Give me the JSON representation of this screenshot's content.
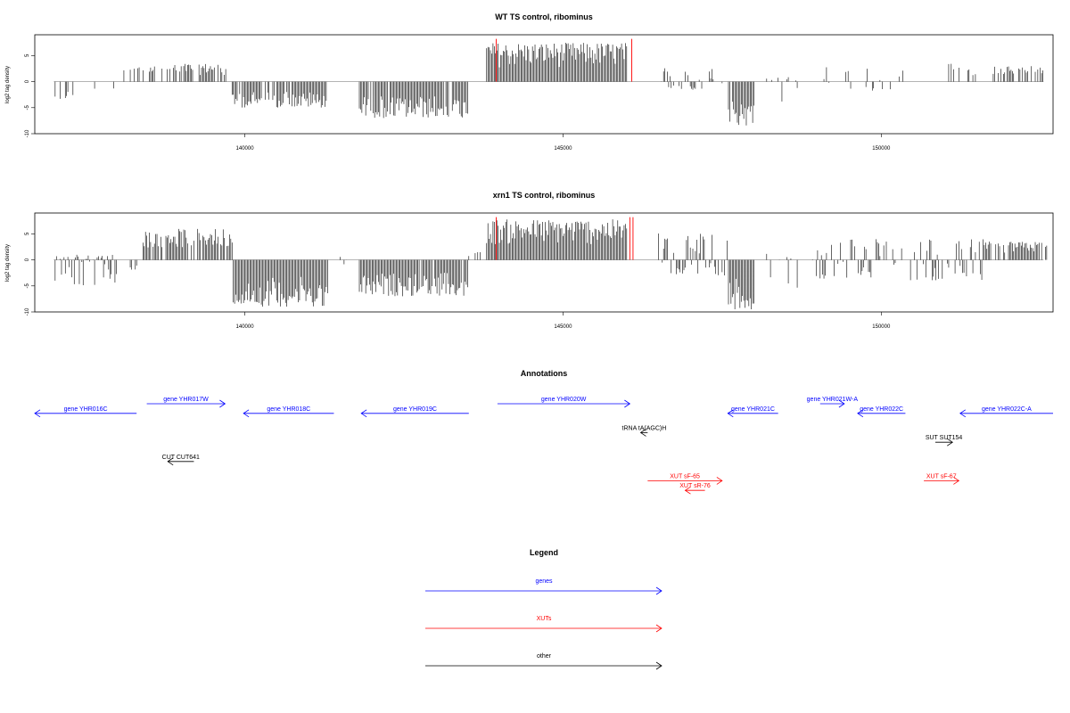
{
  "colors": {
    "genes": "#0000ff",
    "xuts": "#ff0000",
    "other": "#000000",
    "bars": "#000000",
    "peak": "#ff0000",
    "axis": "#000000"
  },
  "chart_data": [
    {
      "type": "bar",
      "title": "WT TS control, ribominus",
      "ylabel": "log2 tag density",
      "xlabel": "",
      "xlim": [
        136700,
        152700
      ],
      "ylim": [
        -10,
        9
      ],
      "xticks": [
        140000,
        145000,
        150000
      ],
      "yticks": [
        -10,
        -5,
        0,
        5
      ],
      "xtick_labels": [
        "140000",
        "145000",
        "150000"
      ],
      "ytick_labels": [
        "-10",
        "-5",
        "0",
        "5"
      ],
      "bin_size": 20,
      "segments": [
        {
          "start": 137000,
          "end": 137300,
          "min": -3.5,
          "max": 0,
          "density": 0.5
        },
        {
          "start": 137600,
          "end": 137700,
          "min": -2.0,
          "max": 0,
          "density": 0.3
        },
        {
          "start": 137900,
          "end": 137950,
          "min": -2.5,
          "max": 0,
          "density": 0.3
        },
        {
          "start": 138100,
          "end": 138900,
          "min": 0,
          "max": 3.2,
          "density": 0.35
        },
        {
          "start": 138900,
          "end": 139700,
          "min": 0,
          "max": 3.5,
          "density": 0.7
        },
        {
          "start": 139800,
          "end": 141300,
          "min": -5.0,
          "max": 0,
          "density": 0.85
        },
        {
          "start": 141800,
          "end": 143500,
          "min": -7.0,
          "max": 0,
          "density": 0.95
        },
        {
          "start": 143800,
          "end": 146000,
          "min": 0,
          "max": 7.5,
          "density": 1.0
        },
        {
          "start": 146200,
          "end": 146350,
          "min": -2.5,
          "max": 3.0,
          "density": 0.35
        },
        {
          "start": 146500,
          "end": 147500,
          "min": -2.0,
          "max": 3.0,
          "density": 0.3
        },
        {
          "start": 147600,
          "end": 148000,
          "min": -8.5,
          "max": 0,
          "density": 0.9
        },
        {
          "start": 148200,
          "end": 148700,
          "min": -5.5,
          "max": 1.0,
          "density": 0.35
        },
        {
          "start": 149000,
          "end": 150600,
          "min": -2.0,
          "max": 3.0,
          "density": 0.22
        },
        {
          "start": 151000,
          "end": 151500,
          "min": 0,
          "max": 3.5,
          "density": 0.35
        },
        {
          "start": 151700,
          "end": 152550,
          "min": 0,
          "max": 3.0,
          "density": 0.55
        }
      ],
      "peaks": [
        {
          "x": 143950,
          "y": 8.2
        },
        {
          "x": 146080,
          "y": 8.2
        }
      ]
    },
    {
      "type": "bar",
      "title": "xrn1 TS control, ribominus",
      "ylabel": "log2 tag density",
      "xlabel": "",
      "xlim": [
        136700,
        152700
      ],
      "ylim": [
        -10,
        9
      ],
      "xticks": [
        140000,
        145000,
        150000
      ],
      "yticks": [
        -10,
        -5,
        0,
        5
      ],
      "xtick_labels": [
        "140000",
        "145000",
        "150000"
      ],
      "ytick_labels": [
        "-10",
        "-5",
        "0",
        "5"
      ],
      "bin_size": 20,
      "segments": [
        {
          "start": 137000,
          "end": 138000,
          "min": -5.0,
          "max": 1.0,
          "density": 0.7
        },
        {
          "start": 138100,
          "end": 138400,
          "min": -2.0,
          "max": 0,
          "density": 0.3
        },
        {
          "start": 138400,
          "end": 139800,
          "min": 0,
          "max": 6.0,
          "density": 0.85
        },
        {
          "start": 139800,
          "end": 141300,
          "min": -9.0,
          "max": 0,
          "density": 0.95
        },
        {
          "start": 141500,
          "end": 141700,
          "min": -1.5,
          "max": 2.0,
          "density": 0.3
        },
        {
          "start": 141800,
          "end": 143500,
          "min": -7.0,
          "max": 0,
          "density": 0.95
        },
        {
          "start": 143500,
          "end": 143700,
          "min": 0,
          "max": 1.5,
          "density": 0.3
        },
        {
          "start": 143800,
          "end": 146000,
          "min": 0,
          "max": 7.8,
          "density": 1.0
        },
        {
          "start": 146500,
          "end": 147600,
          "min": -3.0,
          "max": 5.5,
          "density": 0.7
        },
        {
          "start": 147600,
          "end": 148000,
          "min": -9.5,
          "max": 0,
          "density": 0.95
        },
        {
          "start": 148200,
          "end": 148700,
          "min": -5.5,
          "max": 1.5,
          "density": 0.35
        },
        {
          "start": 148900,
          "end": 151600,
          "min": -4.0,
          "max": 4.0,
          "density": 0.5
        },
        {
          "start": 151600,
          "end": 152600,
          "min": 0,
          "max": 3.5,
          "density": 0.8
        }
      ],
      "peaks": [
        {
          "x": 143950,
          "y": 8.2
        },
        {
          "x": 146050,
          "y": 8.2
        },
        {
          "x": 146100,
          "y": 8.2
        }
      ]
    }
  ],
  "annotations": {
    "title": "Annotations",
    "xlim": [
      136700,
      152700
    ],
    "features": [
      {
        "label": "gene YHR016C",
        "type": "genes",
        "start": 136700,
        "end": 138300,
        "strand": "-",
        "row": 1
      },
      {
        "label": "gene YHR017W",
        "type": "genes",
        "start": 138460,
        "end": 139690,
        "strand": "+",
        "row": 0
      },
      {
        "label": "gene YHR018C",
        "type": "genes",
        "start": 139980,
        "end": 141400,
        "strand": "-",
        "row": 1
      },
      {
        "label": "gene YHR019C",
        "type": "genes",
        "start": 141830,
        "end": 143520,
        "strand": "-",
        "row": 1
      },
      {
        "label": "gene YHR020W",
        "type": "genes",
        "start": 143970,
        "end": 146050,
        "strand": "+",
        "row": 0
      },
      {
        "label": "tRNA tA(AGC)H",
        "type": "other",
        "start": 146220,
        "end": 146330,
        "strand": "-",
        "row": 3
      },
      {
        "label": "gene YHR021C",
        "type": "genes",
        "start": 147590,
        "end": 148380,
        "strand": "-",
        "row": 1
      },
      {
        "label": "gene YHR021W-A",
        "type": "genes",
        "start": 149040,
        "end": 149420,
        "strand": "+",
        "row": 0
      },
      {
        "label": "gene YHR022C",
        "type": "genes",
        "start": 149630,
        "end": 150380,
        "strand": "-",
        "row": 1
      },
      {
        "label": "gene YHR022C-A",
        "type": "genes",
        "start": 151240,
        "end": 152700,
        "strand": "-",
        "row": 1
      },
      {
        "label": "SUT SUT154",
        "type": "other",
        "start": 150850,
        "end": 151120,
        "strand": "+",
        "row": 4
      },
      {
        "label": "CUT CUT641",
        "type": "other",
        "start": 138790,
        "end": 139200,
        "strand": "-",
        "row": 6
      },
      {
        "label": "XUT sF-65",
        "type": "xuts",
        "start": 146330,
        "end": 147500,
        "strand": "+",
        "row": 8
      },
      {
        "label": "XUT sR-76",
        "type": "xuts",
        "start": 146920,
        "end": 147230,
        "strand": "-",
        "row": 9
      },
      {
        "label": "XUT sF-67",
        "type": "xuts",
        "start": 150670,
        "end": 151220,
        "strand": "+",
        "row": 8
      }
    ]
  },
  "legend": {
    "title": "Legend",
    "items": [
      {
        "label": "genes",
        "type": "genes"
      },
      {
        "label": "XUTs",
        "type": "xuts"
      },
      {
        "label": "other",
        "type": "other"
      }
    ]
  }
}
